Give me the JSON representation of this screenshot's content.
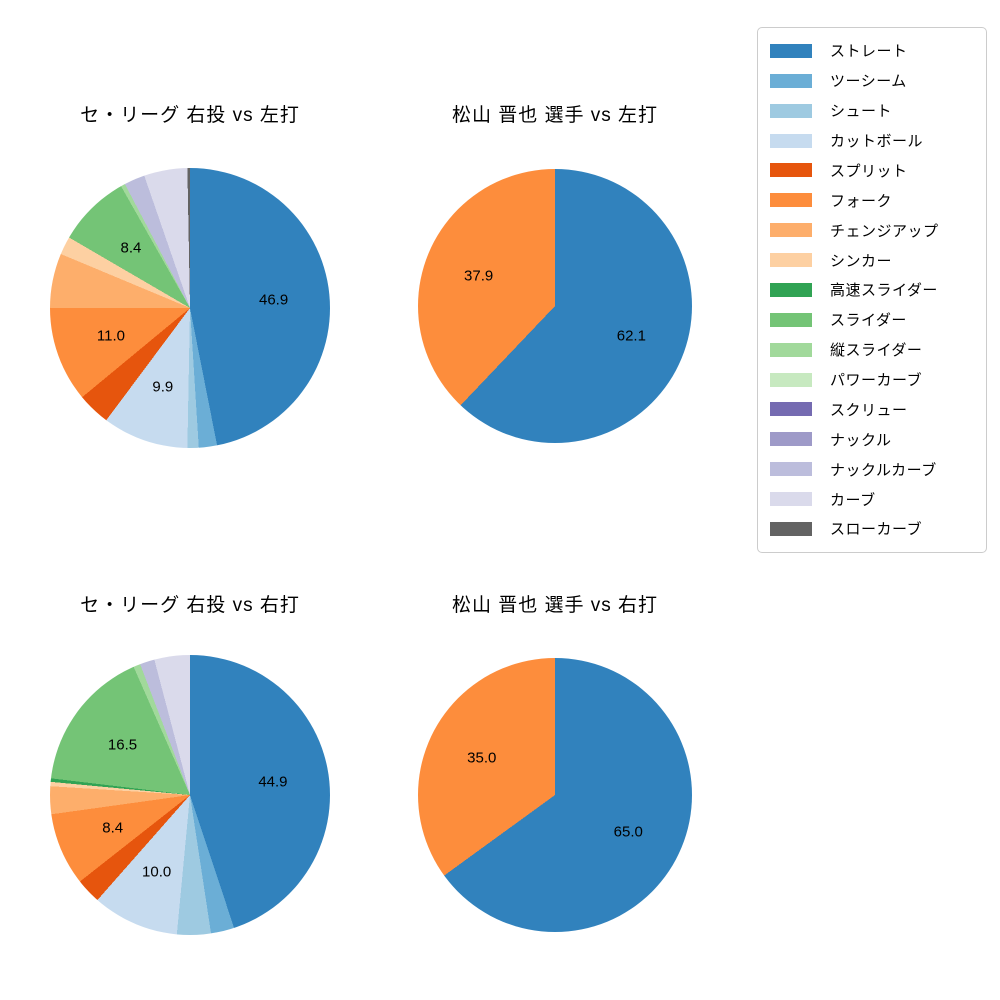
{
  "figure": {
    "background_color": "#ffffff",
    "text_color": "#000000"
  },
  "legend": {
    "position": "top-right",
    "border_color": "#cccccc",
    "entries": [
      {
        "label": "ストレート",
        "color": "#3182bd"
      },
      {
        "label": "ツーシーム",
        "color": "#6baed6"
      },
      {
        "label": "シュート",
        "color": "#9ecae1"
      },
      {
        "label": "カットボール",
        "color": "#c6dbef"
      },
      {
        "label": "スプリット",
        "color": "#e6550d"
      },
      {
        "label": "フォーク",
        "color": "#fd8d3c"
      },
      {
        "label": "チェンジアップ",
        "color": "#fdae6b"
      },
      {
        "label": "シンカー",
        "color": "#fdd0a2"
      },
      {
        "label": "高速スライダー",
        "color": "#31a354"
      },
      {
        "label": "スライダー",
        "color": "#74c476"
      },
      {
        "label": "縦スライダー",
        "color": "#a1d99b"
      },
      {
        "label": "パワーカーブ",
        "color": "#c7e9c0"
      },
      {
        "label": "スクリュー",
        "color": "#756bb1"
      },
      {
        "label": "ナックル",
        "color": "#9e9ac8"
      },
      {
        "label": "ナックルカーブ",
        "color": "#bcbddc"
      },
      {
        "label": "カーブ",
        "color": "#dadaeb"
      },
      {
        "label": "スローカーブ",
        "color": "#636363"
      }
    ]
  },
  "chart_data": [
    {
      "type": "pie",
      "title": "セ・リーグ 右投 vs 左打",
      "start_angle": "12-o-clock",
      "direction": "clockwise",
      "pct_label_distance": 0.6,
      "slices": [
        {
          "label": "ストレート",
          "value": 46.9,
          "pct_label": "46.9"
        },
        {
          "label": "ツーシーム",
          "value": 2.1
        },
        {
          "label": "シュート",
          "value": 1.3
        },
        {
          "label": "カットボール",
          "value": 9.9,
          "pct_label": "9.9"
        },
        {
          "label": "スプリット",
          "value": 3.8
        },
        {
          "label": "フォーク",
          "value": 11.0,
          "pct_label": "11.0"
        },
        {
          "label": "チェンジアップ",
          "value": 6.3
        },
        {
          "label": "シンカー",
          "value": 2.1
        },
        {
          "label": "スライダー",
          "value": 8.4,
          "pct_label": "8.4"
        },
        {
          "label": "縦スライダー",
          "value": 0.5
        },
        {
          "label": "ナックルカーブ",
          "value": 2.4
        },
        {
          "label": "カーブ",
          "value": 5.0
        },
        {
          "label": "スローカーブ",
          "value": 0.3
        }
      ]
    },
    {
      "type": "pie",
      "title": "松山 晋也 選手 vs 左打",
      "start_angle": "12-o-clock",
      "direction": "clockwise",
      "pct_label_distance": 0.6,
      "slices": [
        {
          "label": "ストレート",
          "value": 62.1,
          "pct_label": "62.1"
        },
        {
          "label": "フォーク",
          "value": 37.9,
          "pct_label": "37.9"
        }
      ]
    },
    {
      "type": "pie",
      "title": "セ・リーグ 右投 vs 右打",
      "start_angle": "12-o-clock",
      "direction": "clockwise",
      "pct_label_distance": 0.6,
      "slices": [
        {
          "label": "ストレート",
          "value": 44.9,
          "pct_label": "44.9"
        },
        {
          "label": "ツーシーム",
          "value": 2.7
        },
        {
          "label": "シュート",
          "value": 3.9
        },
        {
          "label": "カットボール",
          "value": 10.0,
          "pct_label": "10.0"
        },
        {
          "label": "スプリット",
          "value": 2.9
        },
        {
          "label": "フォーク",
          "value": 8.4,
          "pct_label": "8.4"
        },
        {
          "label": "チェンジアップ",
          "value": 3.2
        },
        {
          "label": "シンカー",
          "value": 0.5
        },
        {
          "label": "高速スライダー",
          "value": 0.4
        },
        {
          "label": "スライダー",
          "value": 16.5,
          "pct_label": "16.5"
        },
        {
          "label": "縦スライダー",
          "value": 0.8
        },
        {
          "label": "ナックルカーブ",
          "value": 1.7
        },
        {
          "label": "カーブ",
          "value": 4.1
        }
      ]
    },
    {
      "type": "pie",
      "title": "松山 晋也 選手 vs 右打",
      "start_angle": "12-o-clock",
      "direction": "clockwise",
      "pct_label_distance": 0.6,
      "slices": [
        {
          "label": "ストレート",
          "value": 65.0,
          "pct_label": "65.0"
        },
        {
          "label": "フォーク",
          "value": 35.0,
          "pct_label": "35.0"
        }
      ]
    }
  ]
}
